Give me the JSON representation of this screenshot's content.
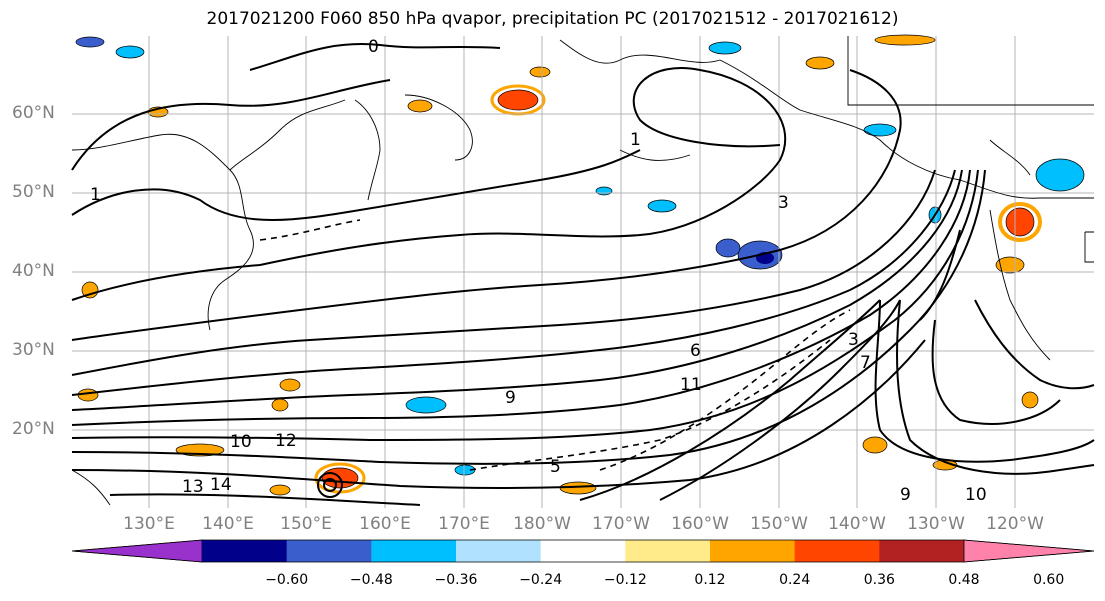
{
  "title": "2017021200 F060 850 hPa qvapor, precipitation PC (2017021512 - 2017021612)",
  "lat_labels": [
    "60°N",
    "50°N",
    "40°N",
    "30°N",
    "20°N"
  ],
  "lon_labels": [
    "130°E",
    "140°E",
    "150°E",
    "160°E",
    "170°E",
    "180°W",
    "170°W",
    "160°W",
    "150°W",
    "140°W",
    "130°W",
    "120°W"
  ],
  "contour_labels": [
    "0",
    "1",
    "3",
    "6",
    "9",
    "10",
    "11",
    "12",
    "13",
    "14",
    "1",
    "3",
    "5",
    "7",
    "9",
    "10"
  ],
  "colorbar": {
    "ticks": [
      "−0.60",
      "−0.48",
      "−0.36",
      "−0.24",
      "−0.12",
      "0.12",
      "0.24",
      "0.36",
      "0.48",
      "0.60"
    ],
    "colors": [
      "#9932cc",
      "#00008b",
      "#3a5fcd",
      "#00bfff",
      "#b0e2ff",
      "#ffffff",
      "#ffeb8a",
      "#ffa500",
      "#ff4500",
      "#b22222",
      "#ff82ab"
    ]
  }
}
